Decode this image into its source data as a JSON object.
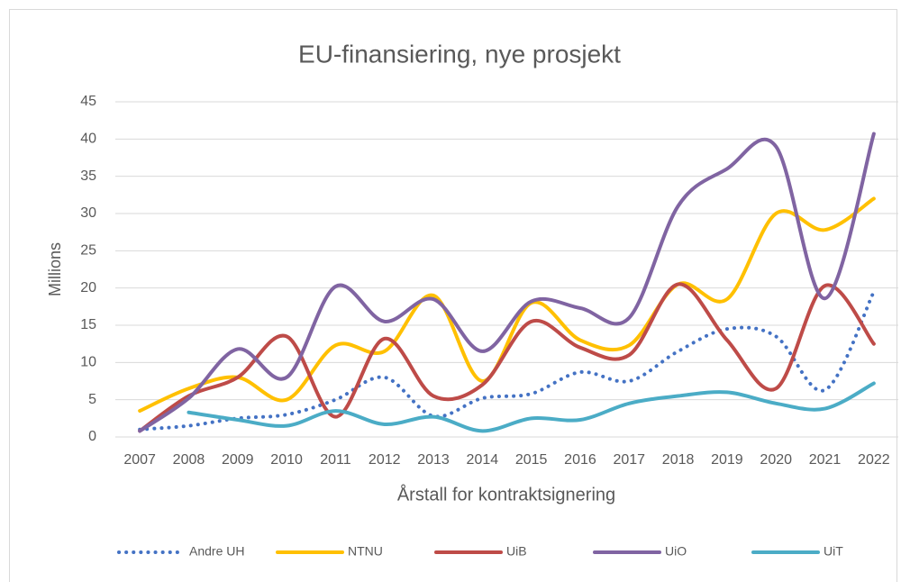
{
  "chart_data": {
    "type": "line",
    "title": "EU-finansiering, nye prosjekt",
    "y_label": "Millions",
    "x_label": "Årstall for kontraktsignering",
    "categories": [
      "2007",
      "2008",
      "2009",
      "2010",
      "2011",
      "2012",
      "2013",
      "2014",
      "2015",
      "2016",
      "2017",
      "2018",
      "2019",
      "2020",
      "2021",
      "2022"
    ],
    "series": [
      {
        "name": "Andre UH",
        "color": "#4472c4",
        "dashed": true,
        "values": [
          1,
          1.5,
          2.5,
          3,
          5,
          8,
          2.8,
          5.2,
          5.8,
          8.7,
          7.5,
          11.5,
          14.5,
          13.5,
          6.3,
          19.5
        ]
      },
      {
        "name": "NTNU",
        "color": "#ffc000",
        "values": [
          3.5,
          6.5,
          8,
          5,
          12.3,
          11.5,
          19,
          7.5,
          18,
          13,
          12.3,
          20.5,
          18.5,
          30,
          27.8,
          32
        ]
      },
      {
        "name": "UiB",
        "color": "#be4b48",
        "values": [
          0.8,
          5.5,
          8,
          13.5,
          2.7,
          13.2,
          5.5,
          7,
          15.5,
          12,
          11,
          20.5,
          13,
          6.5,
          20.3,
          12.5
        ]
      },
      {
        "name": "UiO",
        "color": "#8064a2",
        "values": [
          0.8,
          5.2,
          11.8,
          8,
          20.2,
          15.5,
          18.5,
          11.5,
          18.2,
          17.3,
          16,
          31,
          36,
          39,
          18.6,
          40.7
        ]
      },
      {
        "name": "UiT",
        "color": "#4bacc6",
        "values": [
          null,
          3.3,
          2.3,
          1.5,
          3.5,
          1.7,
          2.7,
          0.8,
          2.5,
          2.3,
          4.5,
          5.5,
          6,
          4.5,
          3.8,
          7.2
        ]
      }
    ],
    "ylim": [
      0,
      45
    ],
    "yticks": [
      0,
      5,
      10,
      15,
      20,
      25,
      30,
      35,
      40,
      45
    ],
    "grid": true,
    "legend": "bottom"
  }
}
